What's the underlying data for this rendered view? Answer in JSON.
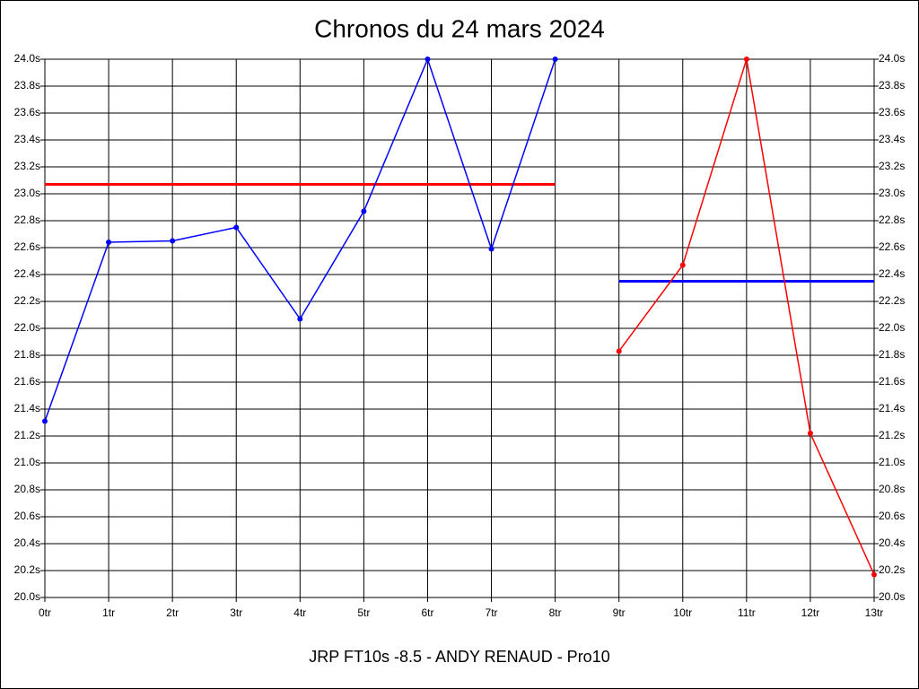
{
  "chart_data": {
    "type": "line",
    "title": "Chronos du 24 mars 2024",
    "x_label": "JRP FT10s -8.5 - ANDY RENAUD - Pro10",
    "categories": [
      "0tr",
      "1tr",
      "2tr",
      "3tr",
      "4tr",
      "5tr",
      "6tr",
      "7tr",
      "8tr",
      "9tr",
      "10tr",
      "11tr",
      "12tr",
      "13tr"
    ],
    "series": [
      {
        "color": "#0000ff",
        "values": [
          21.31,
          22.64,
          22.65,
          22.75,
          22.07,
          22.87,
          24.0,
          22.59,
          24.0,
          null,
          null,
          null,
          null,
          null
        ]
      },
      {
        "color": "#ff0000",
        "values": [
          null,
          null,
          null,
          null,
          null,
          null,
          null,
          null,
          null,
          21.83,
          22.47,
          24.0,
          21.22,
          20.17
        ]
      }
    ],
    "averages": [
      {
        "value": 23.07,
        "color": "#ff0000",
        "series": 0
      },
      {
        "value": 22.35,
        "color": "#0000ff",
        "series": 1
      }
    ],
    "ylim": [
      20.0,
      24.0
    ],
    "yticks": [
      {
        "value": 20.0,
        "label": "20.0s"
      },
      {
        "value": 20.2,
        "label": "20.2s"
      },
      {
        "value": 20.4,
        "label": "20.4s"
      },
      {
        "value": 20.6,
        "label": "20.6s"
      },
      {
        "value": 20.8,
        "label": "20.8s"
      },
      {
        "value": 21.0,
        "label": "21.0s"
      },
      {
        "value": 21.2,
        "label": "21.2s"
      },
      {
        "value": 21.4,
        "label": "21.4s"
      },
      {
        "value": 21.6,
        "label": "21.6s"
      },
      {
        "value": 21.8,
        "label": "21.8s"
      },
      {
        "value": 22.0,
        "label": "22.0s"
      },
      {
        "value": 22.2,
        "label": "22.2s"
      },
      {
        "value": 22.4,
        "label": "22.4s"
      },
      {
        "value": 22.6,
        "label": "22.6s"
      },
      {
        "value": 22.8,
        "label": "22.8s"
      },
      {
        "value": 23.0,
        "label": "23.0s"
      },
      {
        "value": 23.2,
        "label": "23.2s"
      },
      {
        "value": 23.4,
        "label": "23.4s"
      },
      {
        "value": 23.6,
        "label": "23.6s"
      },
      {
        "value": 23.8,
        "label": "23.8s"
      },
      {
        "value": 24.0,
        "label": "24.0s"
      }
    ],
    "grid": true
  }
}
